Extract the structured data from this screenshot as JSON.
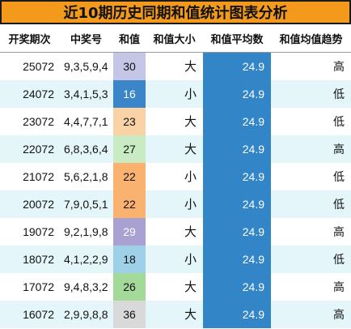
{
  "title": "近10期历史同期和值统计图表分析",
  "headers": [
    "开奖期次",
    "中奖号",
    "和值",
    "和值大小",
    "和值平均数",
    "和值均值趋势"
  ],
  "rows": [
    {
      "period": "25072",
      "numbers": "9,3,5,9,4",
      "sum": "30",
      "size": "大",
      "avg": "24.9",
      "trend": "高",
      "sum_color": "#c5c5e6",
      "sum_text_color": "#111111"
    },
    {
      "period": "24072",
      "numbers": "3,4,1,5,3",
      "sum": "16",
      "size": "小",
      "avg": "24.9",
      "trend": "低",
      "sum_color": "#3a86c8",
      "sum_text_color": "#ffffff"
    },
    {
      "period": "23072",
      "numbers": "4,4,7,7,1",
      "sum": "23",
      "size": "大",
      "avg": "24.9",
      "trend": "低",
      "sum_color": "#f9d2a6",
      "sum_text_color": "#111111"
    },
    {
      "period": "22072",
      "numbers": "6,8,3,6,4",
      "sum": "27",
      "size": "大",
      "avg": "24.9",
      "trend": "高",
      "sum_color": "#c8ebc3",
      "sum_text_color": "#111111"
    },
    {
      "period": "21072",
      "numbers": "5,6,2,1,8",
      "sum": "22",
      "size": "小",
      "avg": "24.9",
      "trend": "低",
      "sum_color": "#f9b26f",
      "sum_text_color": "#111111"
    },
    {
      "period": "20072",
      "numbers": "7,9,0,5,1",
      "sum": "22",
      "size": "小",
      "avg": "24.9",
      "trend": "低",
      "sum_color": "#f9b26f",
      "sum_text_color": "#111111"
    },
    {
      "period": "19072",
      "numbers": "9,2,1,9,8",
      "sum": "29",
      "size": "大",
      "avg": "24.9",
      "trend": "高",
      "sum_color": "#a9a1d2",
      "sum_text_color": "#ffffff"
    },
    {
      "period": "18072",
      "numbers": "4,1,2,2,9",
      "sum": "18",
      "size": "小",
      "avg": "24.9",
      "trend": "低",
      "sum_color": "#9ed0e8",
      "sum_text_color": "#111111"
    },
    {
      "period": "17072",
      "numbers": "9,4,8,3,2",
      "sum": "26",
      "size": "大",
      "avg": "24.9",
      "trend": "高",
      "sum_color": "#a3da99",
      "sum_text_color": "#111111"
    },
    {
      "period": "16072",
      "numbers": "2,9,9,8,8",
      "sum": "36",
      "size": "大",
      "avg": "24.9",
      "trend": "高",
      "sum_color": "#d9d9d9",
      "sum_text_color": "#111111"
    }
  ]
}
